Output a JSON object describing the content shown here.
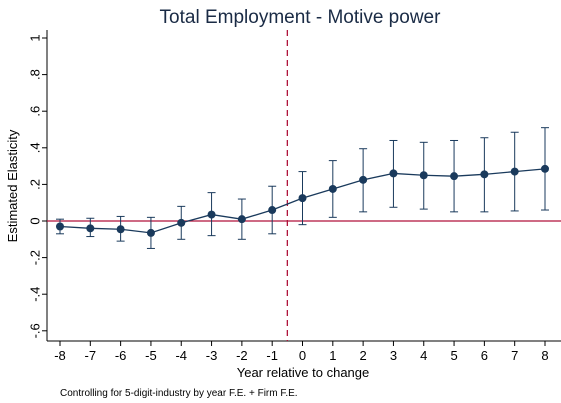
{
  "chart_data": {
    "type": "line",
    "title": "Total Employment - Motive power",
    "xlabel": "Year relative to change",
    "ylabel": "Estimated Elasticity",
    "note": "Controlling for 5-digit-industry by year F.E. + Firm  F.E.",
    "x": [
      -8,
      -7,
      -6,
      -5,
      -4,
      -3,
      -2,
      -1,
      0,
      1,
      2,
      3,
      4,
      5,
      6,
      7,
      8
    ],
    "series": [
      {
        "values": [
          -0.03,
          -0.04,
          -0.045,
          -0.065,
          -0.01,
          0.035,
          0.01,
          0.06,
          0.125,
          0.175,
          0.225,
          0.26,
          0.25,
          0.245,
          0.255,
          0.27,
          0.285
        ],
        "ci_lower": [
          -0.07,
          -0.085,
          -0.11,
          -0.15,
          -0.1,
          -0.08,
          -0.1,
          -0.07,
          -0.02,
          0.02,
          0.05,
          0.075,
          0.065,
          0.05,
          0.05,
          0.055,
          0.06
        ],
        "ci_upper": [
          0.01,
          0.015,
          0.025,
          0.02,
          0.08,
          0.155,
          0.12,
          0.19,
          0.27,
          0.33,
          0.395,
          0.44,
          0.43,
          0.44,
          0.455,
          0.485,
          0.51
        ]
      }
    ],
    "x_ticks": [
      -8,
      -7,
      -6,
      -5,
      -4,
      -3,
      -2,
      -1,
      0,
      1,
      2,
      3,
      4,
      5,
      6,
      7,
      8
    ],
    "y_ticks": [
      {
        "value": -0.6,
        "label": "-.6"
      },
      {
        "value": -0.4,
        "label": "-.4"
      },
      {
        "value": -0.2,
        "label": "-.2"
      },
      {
        "value": 0,
        "label": "0"
      },
      {
        "value": 0.2,
        "label": ".2"
      },
      {
        "value": 0.4,
        "label": ".4"
      },
      {
        "value": 0.6,
        "label": ".6"
      },
      {
        "value": 0.8,
        "label": ".8"
      },
      {
        "value": 1,
        "label": "1"
      }
    ],
    "xlim": [
      -8.5,
      8.5
    ],
    "ylim": [
      -0.65,
      1.05
    ],
    "reference_lines": {
      "horizontal_y": 0,
      "vertical_x": -0.5
    },
    "colors": {
      "series": "#1a3a5c",
      "reference": "#b0123a",
      "axis": "#000000"
    },
    "grid": false
  }
}
